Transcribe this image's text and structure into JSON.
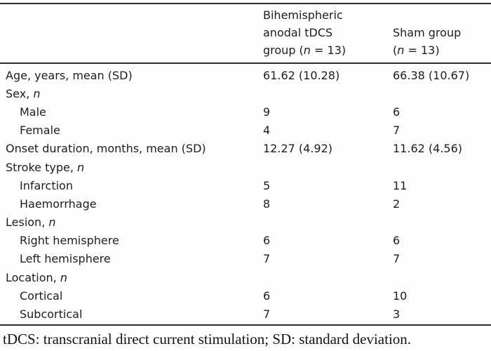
{
  "colors": {
    "background": "#fdfdfd",
    "text": "#1e1e1e",
    "rule": "#2b2b2b"
  },
  "header": {
    "col_tdcs": {
      "pre": "Bihemispheric anodal tDCS group (",
      "italic": "n",
      "post": " = 13)"
    },
    "col_sham": {
      "pre": "Sham group (",
      "italic": "n",
      "post": " = 13)"
    }
  },
  "table": {
    "rows": [
      {
        "label": "Age, years, mean (SD)",
        "italic": "",
        "indent": false,
        "g1": "61.62 (10.28)",
        "g2": "66.38 (10.67)"
      },
      {
        "label": "Sex, ",
        "italic": "n",
        "indent": false,
        "g1": "",
        "g2": ""
      },
      {
        "label": "Male",
        "italic": "",
        "indent": true,
        "g1": "9",
        "g2": "6"
      },
      {
        "label": "Female",
        "italic": "",
        "indent": true,
        "g1": "4",
        "g2": "7"
      },
      {
        "label": "Onset duration, months, mean (SD)",
        "italic": "",
        "indent": false,
        "g1": "12.27 (4.92)",
        "g2": "11.62 (4.56)"
      },
      {
        "label": "Stroke type, ",
        "italic": "n",
        "indent": false,
        "g1": "",
        "g2": ""
      },
      {
        "label": "Infarction",
        "italic": "",
        "indent": true,
        "g1": "5",
        "g2": "11"
      },
      {
        "label": "Haemorrhage",
        "italic": "",
        "indent": true,
        "g1": "8",
        "g2": "2"
      },
      {
        "label": "Lesion, ",
        "italic": "n",
        "indent": false,
        "g1": "",
        "g2": ""
      },
      {
        "label": "Right hemisphere",
        "italic": "",
        "indent": true,
        "g1": "6",
        "g2": "6"
      },
      {
        "label": "Left hemisphere",
        "italic": "",
        "indent": true,
        "g1": "7",
        "g2": "7"
      },
      {
        "label": "Location, ",
        "italic": "n",
        "indent": false,
        "g1": "",
        "g2": ""
      },
      {
        "label": "Cortical",
        "italic": "",
        "indent": true,
        "g1": "6",
        "g2": "10"
      },
      {
        "label": "Subcortical",
        "italic": "",
        "indent": true,
        "g1": "7",
        "g2": "3"
      }
    ]
  },
  "footnote": "tDCS: transcranial direct current stimulation; SD: standard deviation."
}
